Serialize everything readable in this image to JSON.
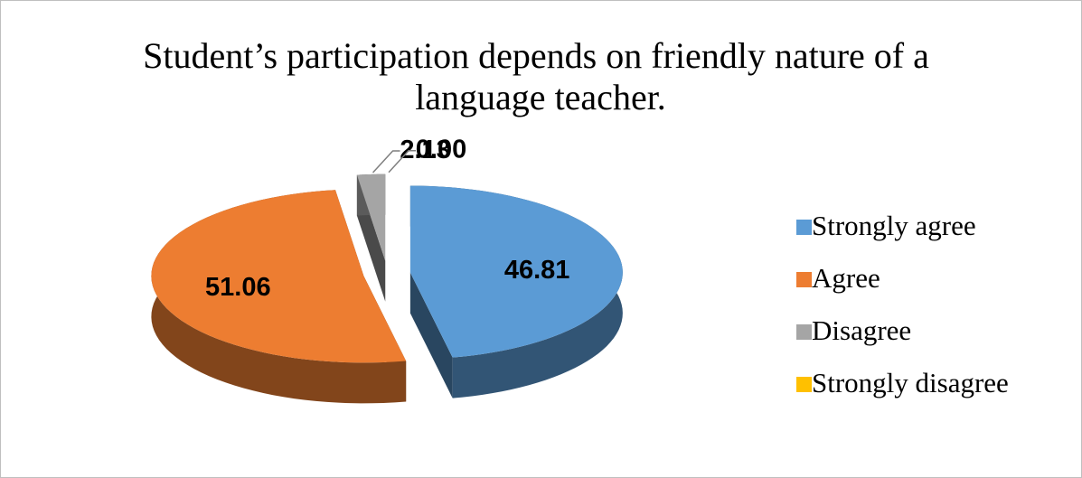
{
  "chart_data": {
    "type": "pie",
    "title": "Student’s participation depends on friendly nature of a language teacher.",
    "categories": [
      "Strongly agree",
      "Agree",
      "Disagree",
      "Strongly disagree"
    ],
    "values": [
      46.81,
      51.06,
      2.13,
      0.0
    ],
    "value_labels": [
      "46.81",
      "51.06",
      "2.13",
      "0.00"
    ],
    "colors": [
      "#5b9bd5",
      "#ed7d31",
      "#a5a5a5",
      "#ffc000"
    ],
    "legend": "right"
  }
}
